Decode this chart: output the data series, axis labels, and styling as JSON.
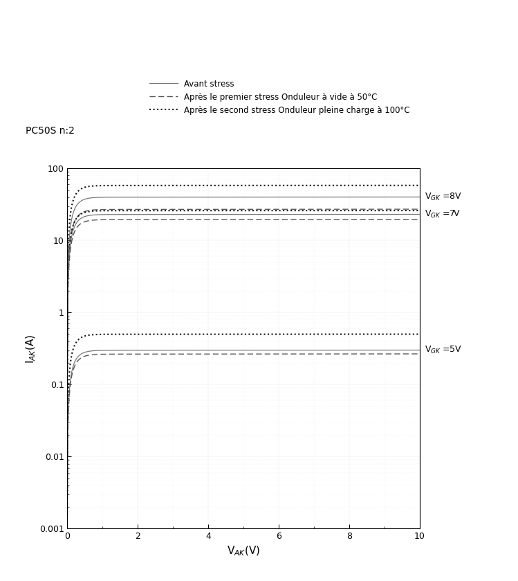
{
  "xlabel": "V$_{AK}$(V)",
  "ylabel": "I$_{AK}$(A)",
  "device_label": "PC50S n:2",
  "legend_entries": [
    "Avant stress",
    "Après le premier stress Onduleur à vide à 50°C",
    "Après le second stress Onduleur pleine charge à 100°C"
  ],
  "vgk_labels": [
    "V$_{GK}$ =8V",
    "V$_{GK}$ =7V",
    "V$_{GK}$ =5V"
  ],
  "sat": {
    "8_avant": 40.0,
    "8_premier": 27.0,
    "8_second": 58.0,
    "7_avant": 23.0,
    "7_premier": 19.5,
    "7_second": 26.0,
    "5_avant": 0.3,
    "5_premier": 0.265,
    "5_second": 0.5
  },
  "xlim": [
    0,
    10
  ],
  "ylim": [
    0.001,
    100
  ],
  "yticks": [
    0.001,
    0.01,
    0.1,
    1,
    10,
    100
  ],
  "ytick_labels": [
    "0.001",
    "0.01",
    "0.1",
    "1",
    "10",
    "100"
  ],
  "xticks": [
    0,
    2,
    4,
    6,
    8,
    10
  ],
  "color_avant": "#777777",
  "color_premier": "#555555",
  "color_second": "#111111",
  "lw_avant": 0.9,
  "lw_premier": 1.0,
  "lw_second": 1.5
}
